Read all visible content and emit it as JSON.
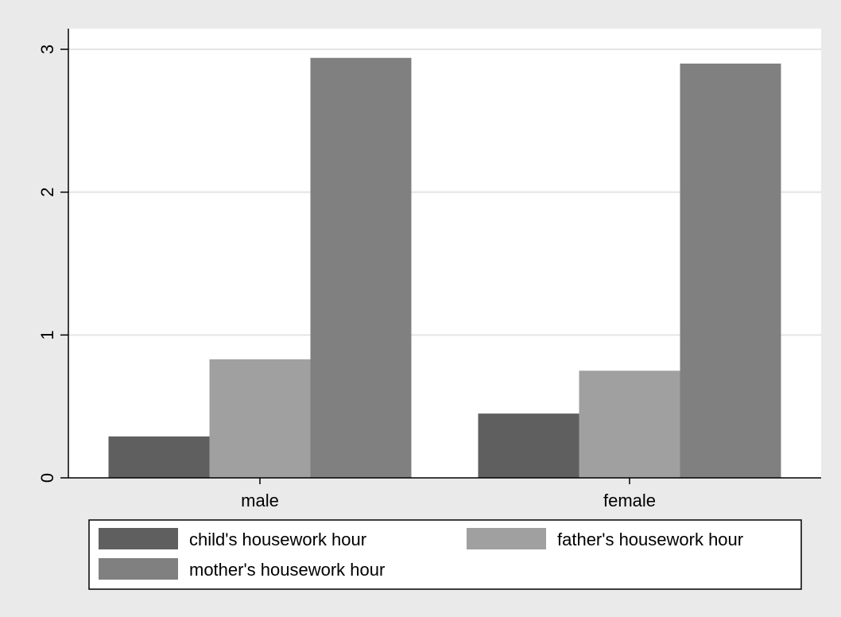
{
  "chart_data": {
    "type": "bar",
    "categories": [
      "male",
      "female"
    ],
    "series": [
      {
        "name": "child's housework hour",
        "color": "#5f5f5f",
        "values": [
          0.29,
          0.45
        ]
      },
      {
        "name": "father's housework hour",
        "color": "#a0a0a0",
        "values": [
          0.83,
          0.75
        ]
      },
      {
        "name": "mother's housework hour",
        "color": "#808080",
        "values": [
          2.94,
          2.9
        ]
      }
    ],
    "ylim": [
      0,
      3
    ],
    "yticks": [
      "0",
      "1",
      "2",
      "3"
    ],
    "ytick_values": [
      0,
      1,
      2,
      3
    ],
    "grid": true,
    "legend_placement": "bottom",
    "colors": {
      "outer_background": "#eaeaea",
      "plot_background": "#ffffff",
      "gridline": "#e4e4e4",
      "axis": "#000000"
    }
  }
}
